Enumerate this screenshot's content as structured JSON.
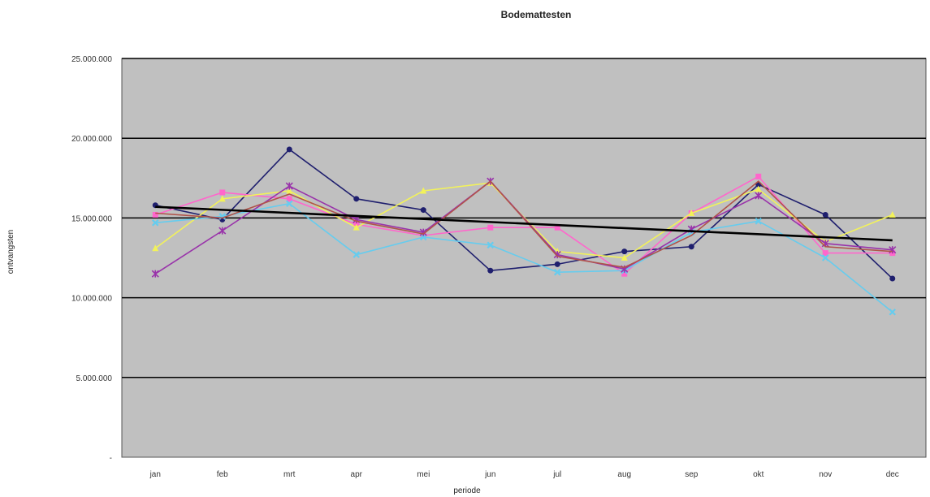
{
  "chart_data": {
    "type": "line",
    "title": "Bodemattesten",
    "xlabel": "periode",
    "ylabel": "ontvangsten",
    "categories": [
      "jan",
      "feb",
      "mrt",
      "apr",
      "mei",
      "jun",
      "jul",
      "aug",
      "sep",
      "okt",
      "nov",
      "dec"
    ],
    "ylim": [
      0,
      25000000
    ],
    "yticks": [
      0,
      5000000,
      10000000,
      15000000,
      20000000,
      25000000
    ],
    "ytick_labels": [
      "-",
      "5.000.000",
      "10.000.000",
      "15.000.000",
      "20.000.000",
      "25.000.000"
    ],
    "grid": true,
    "legend": "none",
    "plot_background": "#c0c0c0",
    "series": [
      {
        "color": "#1f1f6e",
        "marker": "circle",
        "values": [
          15800000,
          14900000,
          19300000,
          16200000,
          15500000,
          11700000,
          12100000,
          12900000,
          13200000,
          17100000,
          15200000,
          11200000
        ]
      },
      {
        "color": "#ff66cc",
        "marker": "square",
        "values": [
          15200000,
          16600000,
          16200000,
          14600000,
          13900000,
          14400000,
          14400000,
          11500000,
          15300000,
          17600000,
          12800000,
          12800000
        ]
      },
      {
        "color": "#f2f25a",
        "marker": "triangle",
        "values": [
          13100000,
          16200000,
          16700000,
          14400000,
          16700000,
          17200000,
          12900000,
          12500000,
          15300000,
          16800000,
          13500000,
          15200000
        ]
      },
      {
        "color": "#66ccee",
        "marker": "x",
        "values": [
          14700000,
          15100000,
          15900000,
          12700000,
          13800000,
          13300000,
          11600000,
          11700000,
          14100000,
          14800000,
          12500000,
          9100000
        ]
      },
      {
        "color": "#9933aa",
        "marker": "star",
        "values": [
          11500000,
          14200000,
          17000000,
          14900000,
          14100000,
          17300000,
          12700000,
          11800000,
          14300000,
          16400000,
          13400000,
          13000000
        ]
      },
      {
        "color": "#b0534a",
        "marker": "none",
        "values": [
          15300000,
          15000000,
          16500000,
          14800000,
          14000000,
          17300000,
          12600000,
          11900000,
          13900000,
          17300000,
          13200000,
          12900000
        ]
      }
    ],
    "trendline": {
      "color": "#000000",
      "start": 15700000,
      "end": 13600000
    }
  }
}
